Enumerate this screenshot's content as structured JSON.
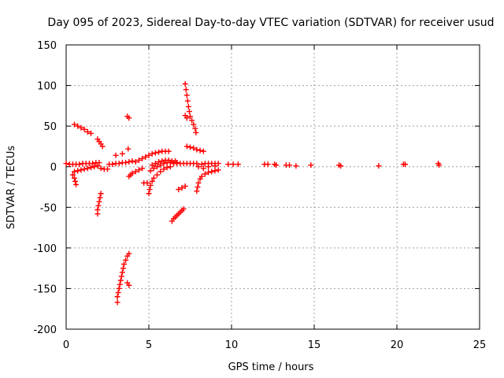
{
  "chart_data": {
    "type": "scatter",
    "title": "Day 095 of 2023, Sidereal Day-to-day VTEC variation (SDTVAR) for receiver usud",
    "xlabel": "GPS time / hours",
    "ylabel": "SDTVAR / TECUs",
    "xlim": [
      0,
      25
    ],
    "ylim": [
      -200,
      150
    ],
    "xticks": [
      0,
      5,
      10,
      15,
      20,
      25
    ],
    "xtick_labels": [
      "0",
      "5",
      "10",
      "15",
      "20",
      "25"
    ],
    "yticks": [
      150,
      100,
      50,
      0,
      -50,
      -100,
      -150,
      -200
    ],
    "ytick_labels": [
      "150",
      "100",
      "50",
      "0",
      "-50",
      "-100",
      "-150",
      "-200"
    ],
    "grid": true,
    "legend": "none",
    "marker": "plus",
    "series": [
      {
        "name": "SDTVAR",
        "color": "#ff0000",
        "points": [
          [
            0.5,
            52
          ],
          [
            0.7,
            50
          ],
          [
            0.9,
            48
          ],
          [
            1.1,
            46
          ],
          [
            1.3,
            43
          ],
          [
            1.5,
            41
          ],
          [
            1.9,
            34
          ],
          [
            2.0,
            31
          ],
          [
            2.1,
            28
          ],
          [
            2.2,
            25
          ],
          [
            3.7,
            62
          ],
          [
            3.8,
            60
          ],
          [
            3.75,
            22
          ],
          [
            2.1,
            -33
          ],
          [
            2.05,
            -38
          ],
          [
            2.0,
            -43
          ],
          [
            1.95,
            -48
          ],
          [
            1.9,
            -53
          ],
          [
            1.9,
            -58
          ],
          [
            3.8,
            -107
          ],
          [
            3.7,
            -110
          ],
          [
            3.6,
            -115
          ],
          [
            3.5,
            -120
          ],
          [
            3.45,
            -125
          ],
          [
            3.4,
            -130
          ],
          [
            3.35,
            -135
          ],
          [
            3.3,
            -140
          ],
          [
            3.25,
            -145
          ],
          [
            3.2,
            -150
          ],
          [
            3.15,
            -155
          ],
          [
            3.1,
            -160
          ],
          [
            3.1,
            -167
          ],
          [
            3.7,
            -143
          ],
          [
            3.8,
            -146
          ],
          [
            0.0,
            4
          ],
          [
            0.2,
            3
          ],
          [
            0.4,
            3
          ],
          [
            0.6,
            3
          ],
          [
            0.8,
            3
          ],
          [
            1.0,
            4
          ],
          [
            1.2,
            4
          ],
          [
            1.4,
            4
          ],
          [
            1.6,
            4
          ],
          [
            1.8,
            5
          ],
          [
            2.0,
            5
          ],
          [
            0.5,
            -6
          ],
          [
            0.7,
            -5
          ],
          [
            0.9,
            -4
          ],
          [
            1.1,
            -3
          ],
          [
            1.3,
            -2
          ],
          [
            1.5,
            -1
          ],
          [
            1.7,
            0
          ],
          [
            1.9,
            1
          ],
          [
            0.5,
            -14
          ],
          [
            0.55,
            -18
          ],
          [
            0.6,
            -22
          ],
          [
            0.4,
            -10
          ],
          [
            2.1,
            -2
          ],
          [
            2.3,
            -3
          ],
          [
            2.5,
            -3
          ],
          [
            2.6,
            3
          ],
          [
            2.8,
            3
          ],
          [
            3.0,
            4
          ],
          [
            3.2,
            4
          ],
          [
            3.4,
            5
          ],
          [
            3.6,
            5
          ],
          [
            3.8,
            6
          ],
          [
            4.0,
            7
          ],
          [
            3.0,
            14
          ],
          [
            3.4,
            16
          ],
          [
            3.8,
            -12
          ],
          [
            3.9,
            -10
          ],
          [
            4.0,
            -8
          ],
          [
            4.2,
            -6
          ],
          [
            4.4,
            -4
          ],
          [
            4.6,
            -2
          ],
          [
            4.2,
            6
          ],
          [
            4.4,
            8
          ],
          [
            4.6,
            10
          ],
          [
            4.8,
            12
          ],
          [
            5.0,
            14
          ],
          [
            5.2,
            16
          ],
          [
            5.4,
            17
          ],
          [
            5.6,
            18
          ],
          [
            5.8,
            19
          ],
          [
            6.0,
            19
          ],
          [
            6.2,
            19
          ],
          [
            5.0,
            -33
          ],
          [
            5.05,
            -28
          ],
          [
            5.1,
            -23
          ],
          [
            5.2,
            -18
          ],
          [
            5.3,
            -14
          ],
          [
            5.5,
            -10
          ],
          [
            5.7,
            -6
          ],
          [
            5.9,
            -3
          ],
          [
            6.1,
            -1
          ],
          [
            6.3,
            0
          ],
          [
            5.1,
            -5
          ],
          [
            5.3,
            -2
          ],
          [
            5.5,
            0
          ],
          [
            5.7,
            2
          ],
          [
            5.9,
            4
          ],
          [
            6.1,
            5
          ],
          [
            6.3,
            5
          ],
          [
            6.5,
            5
          ],
          [
            6.7,
            5
          ],
          [
            4.7,
            -20
          ],
          [
            4.9,
            -20
          ],
          [
            5.2,
            2
          ],
          [
            5.4,
            4
          ],
          [
            5.6,
            6
          ],
          [
            5.8,
            7
          ],
          [
            6.0,
            8
          ],
          [
            6.2,
            8
          ],
          [
            6.4,
            7
          ],
          [
            6.6,
            7
          ],
          [
            6.4,
            -67
          ],
          [
            6.5,
            -64
          ],
          [
            6.6,
            -62
          ],
          [
            6.7,
            -60
          ],
          [
            6.8,
            -58
          ],
          [
            6.9,
            -56
          ],
          [
            7.0,
            -54
          ],
          [
            7.1,
            -52
          ],
          [
            6.8,
            -28
          ],
          [
            7.0,
            -26
          ],
          [
            7.2,
            -24
          ],
          [
            7.2,
            102
          ],
          [
            7.25,
            95
          ],
          [
            7.3,
            88
          ],
          [
            7.35,
            81
          ],
          [
            7.4,
            74
          ],
          [
            7.45,
            68
          ],
          [
            7.5,
            62
          ],
          [
            7.6,
            57
          ],
          [
            7.7,
            52
          ],
          [
            7.8,
            47
          ],
          [
            7.85,
            42
          ],
          [
            7.2,
            63
          ],
          [
            7.3,
            60
          ],
          [
            7.3,
            25
          ],
          [
            7.5,
            24
          ],
          [
            7.7,
            23
          ],
          [
            7.9,
            21
          ],
          [
            8.1,
            20
          ],
          [
            8.3,
            19
          ],
          [
            6.5,
            4
          ],
          [
            6.7,
            4
          ],
          [
            6.9,
            4
          ],
          [
            7.1,
            4
          ],
          [
            7.3,
            4
          ],
          [
            7.5,
            4
          ],
          [
            7.7,
            4
          ],
          [
            7.9,
            4
          ],
          [
            7.9,
            -30
          ],
          [
            7.95,
            -25
          ],
          [
            8.0,
            -20
          ],
          [
            8.1,
            -15
          ],
          [
            8.2,
            -12
          ],
          [
            8.4,
            -9
          ],
          [
            8.6,
            -7
          ],
          [
            8.8,
            -6
          ],
          [
            9.0,
            -5
          ],
          [
            9.2,
            -4
          ],
          [
            8.0,
            0
          ],
          [
            8.2,
            3
          ],
          [
            8.4,
            4
          ],
          [
            8.6,
            4
          ],
          [
            8.8,
            4
          ],
          [
            9.0,
            4
          ],
          [
            9.2,
            4
          ],
          [
            8.3,
            -2
          ],
          [
            8.6,
            0
          ],
          [
            9.0,
            1
          ],
          [
            9.8,
            3
          ],
          [
            10.1,
            3
          ],
          [
            10.4,
            3
          ],
          [
            12.0,
            3
          ],
          [
            12.2,
            3
          ],
          [
            12.6,
            3
          ],
          [
            12.7,
            2
          ],
          [
            13.3,
            2
          ],
          [
            13.5,
            2
          ],
          [
            13.9,
            1
          ],
          [
            14.8,
            2
          ],
          [
            16.5,
            2
          ],
          [
            16.6,
            1
          ],
          [
            18.9,
            1
          ],
          [
            20.4,
            3
          ],
          [
            20.5,
            3
          ],
          [
            22.5,
            4
          ],
          [
            22.55,
            2
          ]
        ]
      }
    ]
  }
}
